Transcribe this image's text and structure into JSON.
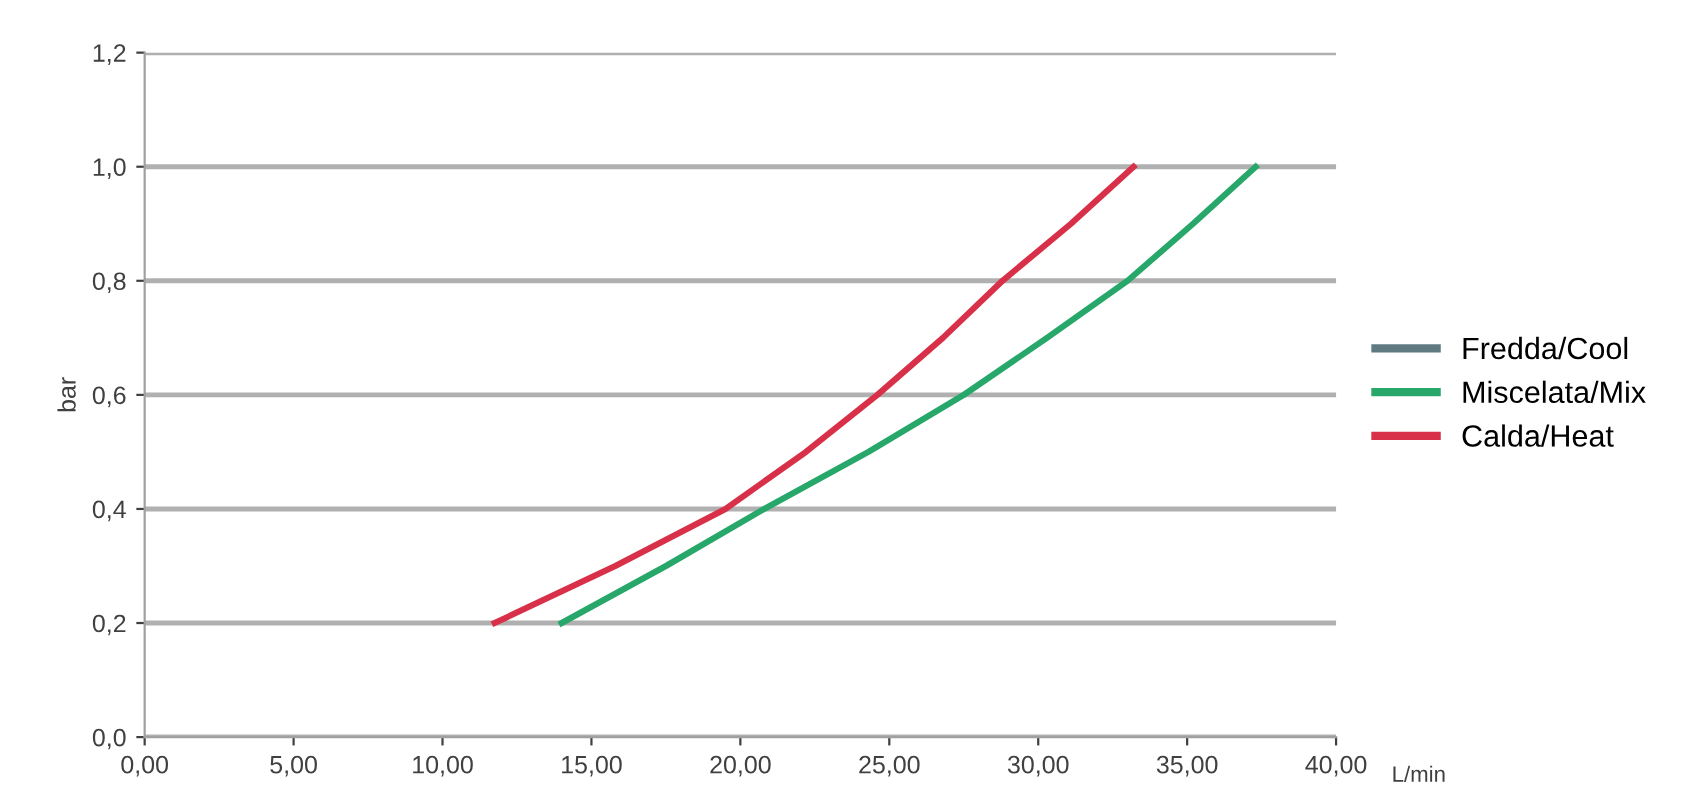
{
  "chart_data": {
    "type": "line",
    "xlabel": "L/min",
    "ylabel": "bar",
    "xlim": [
      0,
      40
    ],
    "ylim": [
      0,
      1.2
    ],
    "xticks": [
      {
        "value": 0,
        "label": "0,00"
      },
      {
        "value": 5,
        "label": "5,00"
      },
      {
        "value": 10,
        "label": "10,00"
      },
      {
        "value": 15,
        "label": "15,00"
      },
      {
        "value": 20,
        "label": "20,00"
      },
      {
        "value": 25,
        "label": "25,00"
      },
      {
        "value": 30,
        "label": "30,00"
      },
      {
        "value": 35,
        "label": "35,00"
      },
      {
        "value": 40,
        "label": "40,00"
      }
    ],
    "yticks": [
      {
        "value": 0,
        "label": "0,0"
      },
      {
        "value": 0.2,
        "label": "0,2"
      },
      {
        "value": 0.4,
        "label": "0,4"
      },
      {
        "value": 0.6,
        "label": "0,6"
      },
      {
        "value": 0.8,
        "label": "0,8"
      },
      {
        "value": 1.0,
        "label": "1,0"
      },
      {
        "value": 1.2,
        "label": "1,2"
      }
    ],
    "grid": "y",
    "legend": "right",
    "marker": "none",
    "line_style": "solid",
    "series": [
      {
        "name": "Fredda/Cool",
        "color": "#5f7a80"
      },
      {
        "name": "Miscelata/Mix",
        "color": "#27a86a",
        "x": [
          14.0,
          17.5,
          20.8,
          24.3,
          27.5,
          30.3,
          33.0,
          35.2,
          37.3
        ],
        "values": [
          0.2,
          0.3,
          0.4,
          0.5,
          0.6,
          0.7,
          0.8,
          0.9,
          1.0
        ]
      },
      {
        "name": "Calda/Heat",
        "color": "#d9304a",
        "x": [
          11.75,
          15.8,
          19.5,
          22.2,
          24.6,
          26.8,
          28.8,
          31.1,
          33.2
        ],
        "values": [
          0.2,
          0.3,
          0.4,
          0.5,
          0.6,
          0.7,
          0.8,
          0.9,
          1.0
        ]
      }
    ]
  }
}
